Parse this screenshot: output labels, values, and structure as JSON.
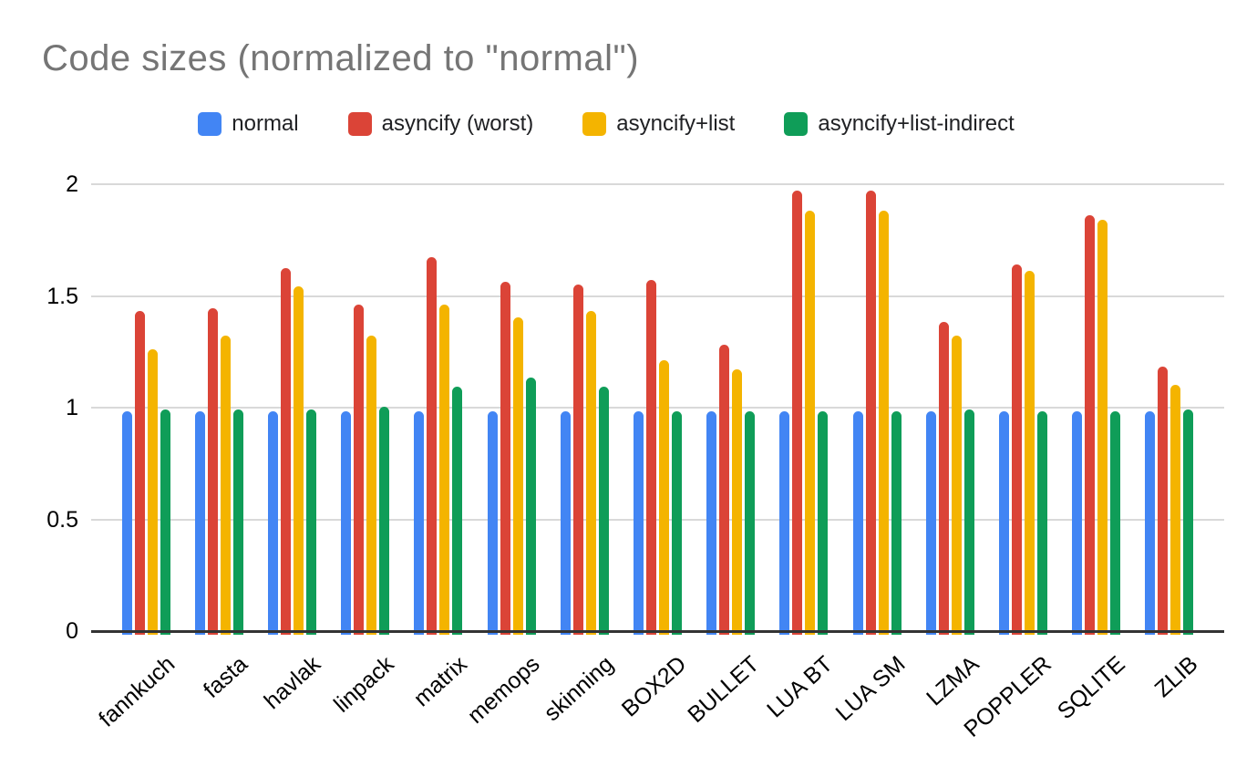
{
  "chart_data": {
    "type": "bar",
    "title": "Code sizes (normalized to \"normal\")",
    "categories": [
      "fannkuch",
      "fasta",
      "havlak",
      "linpack",
      "matrix",
      "memops",
      "skinning",
      "BOX2D",
      "BULLET",
      "LUA BT",
      "LUA SM",
      "LZMA",
      "POPPLER",
      "SQLITE",
      "ZLIB"
    ],
    "series": [
      {
        "name": "normal",
        "color": "#4285F4",
        "values": [
          1.0,
          1.0,
          1.0,
          1.0,
          1.0,
          1.0,
          1.0,
          1.0,
          1.0,
          1.0,
          1.0,
          1.0,
          1.0,
          1.0,
          1.0
        ]
      },
      {
        "name": "asyncify (worst)",
        "color": "#DB4437",
        "values": [
          1.45,
          1.46,
          1.64,
          1.48,
          1.69,
          1.58,
          1.57,
          1.59,
          1.3,
          1.99,
          1.99,
          1.4,
          1.66,
          1.88,
          1.2
        ]
      },
      {
        "name": "asyncify+list",
        "color": "#F4B400",
        "values": [
          1.28,
          1.34,
          1.56,
          1.34,
          1.48,
          1.42,
          1.45,
          1.23,
          1.19,
          1.9,
          1.9,
          1.34,
          1.63,
          1.86,
          1.12
        ]
      },
      {
        "name": "asyncify+list-indirect",
        "color": "#0F9D58",
        "values": [
          1.01,
          1.01,
          1.01,
          1.02,
          1.11,
          1.15,
          1.11,
          1.0,
          1.0,
          1.0,
          1.0,
          1.01,
          1.0,
          1.0,
          1.01
        ]
      }
    ],
    "xlabel": "",
    "ylabel": "",
    "yticks": [
      0,
      0.5,
      1,
      1.5,
      2
    ],
    "ytick_labels": [
      "0",
      "0.5",
      "1",
      "1.5",
      "2"
    ],
    "ylim": [
      0,
      2.05
    ],
    "grid": true,
    "legend_position": "top"
  },
  "colors": {
    "background": "#ffffff",
    "title_text": "#757575",
    "axis_line": "#333333",
    "gridline": "#d9d9d9",
    "tick_text": "#000000"
  }
}
